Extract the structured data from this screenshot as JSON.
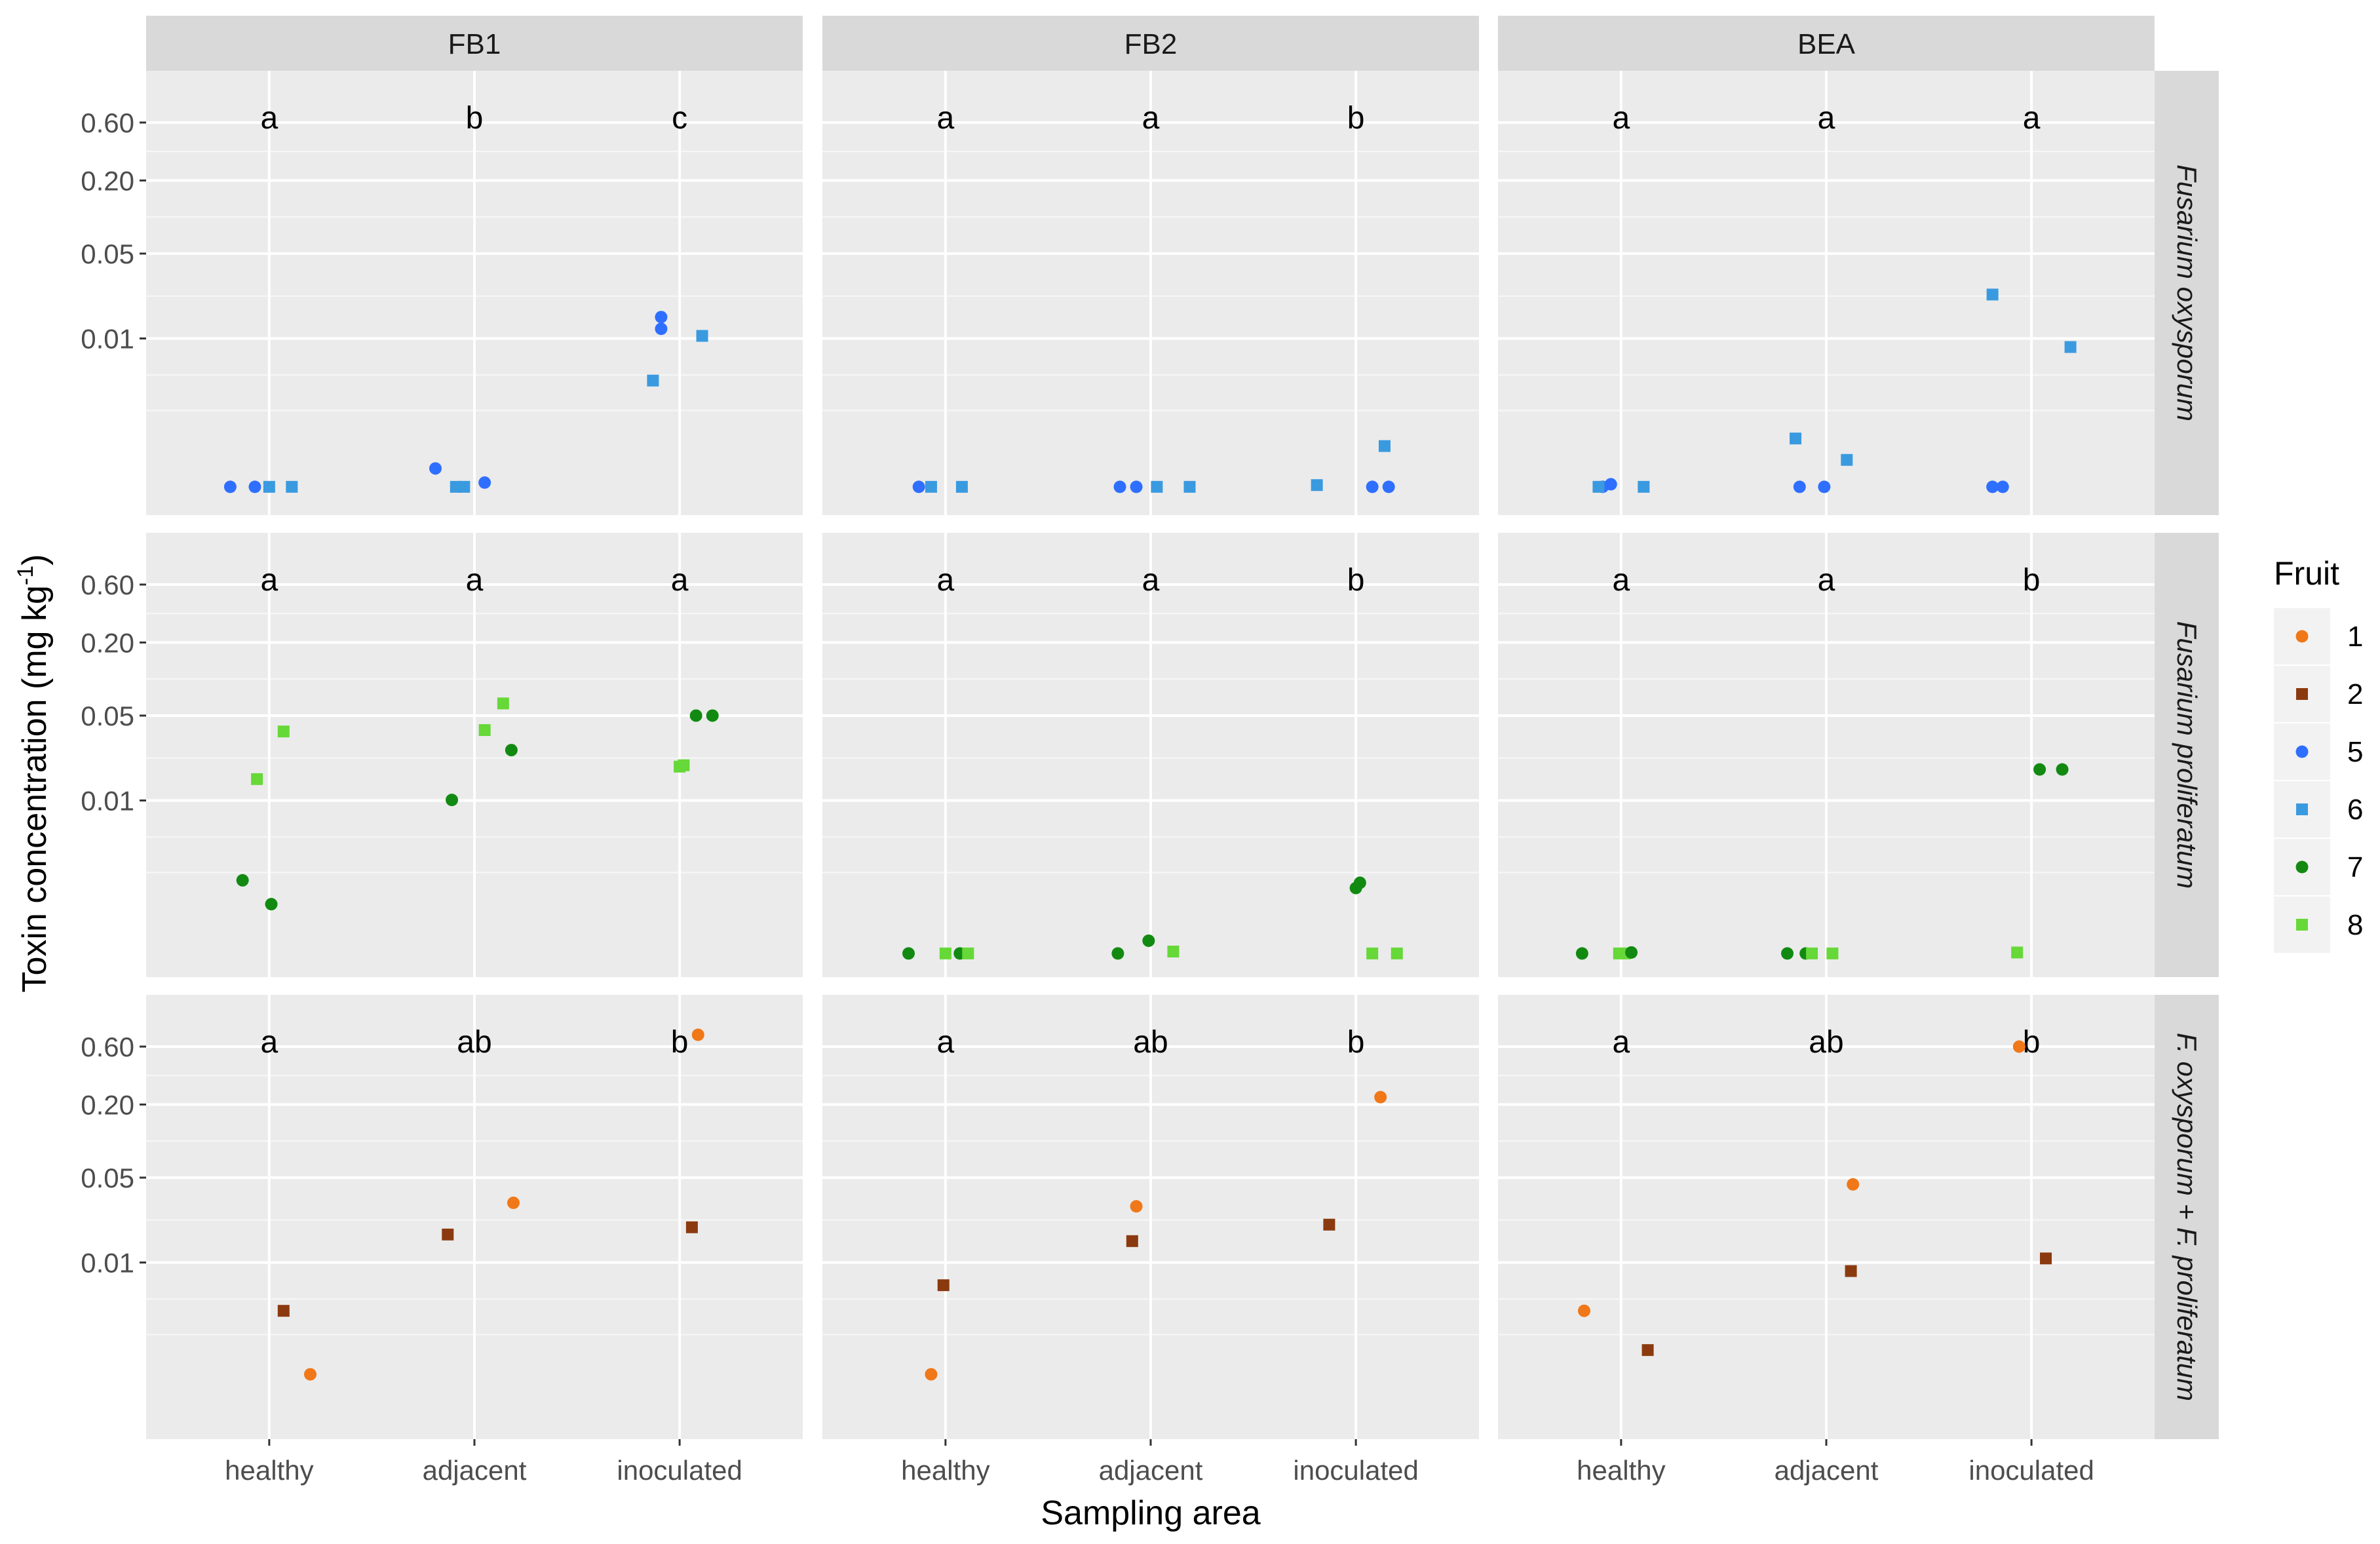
{
  "chart_data": {
    "type": "scatter",
    "layout": "faceted-grid",
    "xlabel": "Sampling area",
    "ylabel_main": "Toxin concentration (mg kg",
    "ylabel_sup": "-1",
    "ylabel_close": ")",
    "yscale": "log",
    "y_ticks": [
      {
        "value": 0.6,
        "label": "0.60"
      },
      {
        "value": 0.2,
        "label": "0.20"
      },
      {
        "value": 0.05,
        "label": "0.05"
      },
      {
        "value": 0.01,
        "label": "0.01"
      }
    ],
    "categories": [
      "healthy",
      "adjacent",
      "inoculated"
    ],
    "columns": [
      "FB1",
      "FB2",
      "BEA"
    ],
    "rows": [
      "Fusarium oxysporum",
      "Fusarium proliferatum",
      "F. oxysporum + F. proliferatum"
    ],
    "legend": {
      "title": "Fruit",
      "entries": [
        {
          "label": "1",
          "color": "#f07818",
          "shape": "circle"
        },
        {
          "label": "2",
          "color": "#8b3a0f",
          "shape": "square"
        },
        {
          "label": "5",
          "color": "#2f6fff",
          "shape": "circle"
        },
        {
          "label": "6",
          "color": "#3a9ae0",
          "shape": "square"
        },
        {
          "label": "7",
          "color": "#128a12",
          "shape": "circle"
        },
        {
          "label": "8",
          "color": "#66d838",
          "shape": "square"
        }
      ]
    },
    "letters": [
      [
        [
          "a",
          "b",
          "c"
        ],
        [
          "a",
          "a",
          "b"
        ],
        [
          "a",
          "a",
          "a"
        ]
      ],
      [
        [
          "a",
          "a",
          "a"
        ],
        [
          "a",
          "a",
          "b"
        ],
        [
          "a",
          "a",
          "b"
        ]
      ],
      [
        [
          "a",
          "ab",
          "b"
        ],
        [
          "a",
          "ab",
          "b"
        ],
        [
          "a",
          "ab",
          "b"
        ]
      ]
    ],
    "points": [
      [
        [
          {
            "fruit": "5",
            "cat": 0,
            "dx": -0.19,
            "y": 0.0006
          },
          {
            "fruit": "5",
            "cat": 0,
            "dx": -0.07,
            "y": 0.0006
          },
          {
            "fruit": "6",
            "cat": 0,
            "dx": 0,
            "y": 0.0006
          },
          {
            "fruit": "6",
            "cat": 0,
            "dx": 0.11,
            "y": 0.0006
          },
          {
            "fruit": "5",
            "cat": 1,
            "dx": -0.19,
            "y": 0.00085
          },
          {
            "fruit": "6",
            "cat": 1,
            "dx": -0.09,
            "y": 0.0006
          },
          {
            "fruit": "6",
            "cat": 1,
            "dx": -0.05,
            "y": 0.0006
          },
          {
            "fruit": "5",
            "cat": 1,
            "dx": 0.05,
            "y": 0.00065
          },
          {
            "fruit": "5",
            "cat": 2,
            "dx": -0.09,
            "y": 0.015
          },
          {
            "fruit": "5",
            "cat": 2,
            "dx": -0.09,
            "y": 0.012
          },
          {
            "fruit": "6",
            "cat": 2,
            "dx": -0.13,
            "y": 0.0045
          },
          {
            "fruit": "6",
            "cat": 2,
            "dx": 0.11,
            "y": 0.0105
          }
        ],
        [
          {
            "fruit": "5",
            "cat": 0,
            "dx": -0.13,
            "y": 0.0006
          },
          {
            "fruit": "6",
            "cat": 0,
            "dx": -0.07,
            "y": 0.0006
          },
          {
            "fruit": "6",
            "cat": 0,
            "dx": 0.08,
            "y": 0.0006
          },
          {
            "fruit": "5",
            "cat": 1,
            "dx": -0.15,
            "y": 0.0006
          },
          {
            "fruit": "5",
            "cat": 1,
            "dx": -0.07,
            "y": 0.0006
          },
          {
            "fruit": "6",
            "cat": 1,
            "dx": 0.03,
            "y": 0.0006
          },
          {
            "fruit": "6",
            "cat": 1,
            "dx": 0.19,
            "y": 0.0006
          },
          {
            "fruit": "6",
            "cat": 2,
            "dx": -0.19,
            "y": 0.00062
          },
          {
            "fruit": "5",
            "cat": 2,
            "dx": 0.08,
            "y": 0.0006
          },
          {
            "fruit": "5",
            "cat": 2,
            "dx": 0.16,
            "y": 0.0006
          },
          {
            "fruit": "6",
            "cat": 2,
            "dx": 0.14,
            "y": 0.0013
          }
        ],
        [
          {
            "fruit": "5",
            "cat": 0,
            "dx": -0.09,
            "y": 0.0006
          },
          {
            "fruit": "5",
            "cat": 0,
            "dx": -0.05,
            "y": 0.00063
          },
          {
            "fruit": "6",
            "cat": 0,
            "dx": -0.11,
            "y": 0.0006
          },
          {
            "fruit": "6",
            "cat": 0,
            "dx": 0.11,
            "y": 0.0006
          },
          {
            "fruit": "6",
            "cat": 1,
            "dx": -0.15,
            "y": 0.0015
          },
          {
            "fruit": "6",
            "cat": 1,
            "dx": 0.1,
            "y": 0.001
          },
          {
            "fruit": "5",
            "cat": 1,
            "dx": -0.13,
            "y": 0.0006
          },
          {
            "fruit": "5",
            "cat": 1,
            "dx": -0.01,
            "y": 0.0006
          },
          {
            "fruit": "6",
            "cat": 2,
            "dx": -0.19,
            "y": 0.023
          },
          {
            "fruit": "6",
            "cat": 2,
            "dx": 0.19,
            "y": 0.0085
          },
          {
            "fruit": "5",
            "cat": 2,
            "dx": -0.19,
            "y": 0.0006
          },
          {
            "fruit": "5",
            "cat": 2,
            "dx": -0.14,
            "y": 0.0006
          }
        ]
      ],
      [
        [
          {
            "fruit": "7",
            "cat": 0,
            "dx": -0.13,
            "y": 0.0022
          },
          {
            "fruit": "7",
            "cat": 0,
            "dx": 0.01,
            "y": 0.0014
          },
          {
            "fruit": "8",
            "cat": 0,
            "dx": -0.06,
            "y": 0.015
          },
          {
            "fruit": "8",
            "cat": 0,
            "dx": 0.07,
            "y": 0.037
          },
          {
            "fruit": "7",
            "cat": 1,
            "dx": -0.11,
            "y": 0.0101
          },
          {
            "fruit": "7",
            "cat": 1,
            "dx": 0.18,
            "y": 0.026
          },
          {
            "fruit": "8",
            "cat": 1,
            "dx": 0.05,
            "y": 0.038
          },
          {
            "fruit": "8",
            "cat": 1,
            "dx": 0.14,
            "y": 0.063
          },
          {
            "fruit": "7",
            "cat": 2,
            "dx": 0.08,
            "y": 0.05
          },
          {
            "fruit": "7",
            "cat": 2,
            "dx": 0.16,
            "y": 0.05
          },
          {
            "fruit": "8",
            "cat": 2,
            "dx": 0,
            "y": 0.019
          },
          {
            "fruit": "8",
            "cat": 2,
            "dx": 0.02,
            "y": 0.0195
          }
        ],
        [
          {
            "fruit": "7",
            "cat": 0,
            "dx": -0.18,
            "y": 0.00055
          },
          {
            "fruit": "8",
            "cat": 0,
            "dx": 0,
            "y": 0.00055
          },
          {
            "fruit": "7",
            "cat": 0,
            "dx": 0.07,
            "y": 0.00055
          },
          {
            "fruit": "8",
            "cat": 0,
            "dx": 0.11,
            "y": 0.00055
          },
          {
            "fruit": "7",
            "cat": 1,
            "dx": -0.16,
            "y": 0.00055
          },
          {
            "fruit": "7",
            "cat": 1,
            "dx": -0.01,
            "y": 0.0007
          },
          {
            "fruit": "8",
            "cat": 1,
            "dx": 0.11,
            "y": 0.00057
          },
          {
            "fruit": "7",
            "cat": 2,
            "dx": 0,
            "y": 0.0019
          },
          {
            "fruit": "7",
            "cat": 2,
            "dx": 0.02,
            "y": 0.0021
          },
          {
            "fruit": "8",
            "cat": 2,
            "dx": 0.08,
            "y": 0.00055
          },
          {
            "fruit": "8",
            "cat": 2,
            "dx": 0.2,
            "y": 0.00055
          }
        ],
        [
          {
            "fruit": "7",
            "cat": 0,
            "dx": -0.19,
            "y": 0.00055
          },
          {
            "fruit": "8",
            "cat": 0,
            "dx": -0.01,
            "y": 0.00055
          },
          {
            "fruit": "8",
            "cat": 0,
            "dx": 0.02,
            "y": 0.00055
          },
          {
            "fruit": "7",
            "cat": 0,
            "dx": 0.05,
            "y": 0.00056
          },
          {
            "fruit": "7",
            "cat": 1,
            "dx": -0.19,
            "y": 0.00055
          },
          {
            "fruit": "7",
            "cat": 1,
            "dx": -0.1,
            "y": 0.00055
          },
          {
            "fruit": "8",
            "cat": 1,
            "dx": -0.07,
            "y": 0.00055
          },
          {
            "fruit": "8",
            "cat": 1,
            "dx": 0.03,
            "y": 0.00055
          },
          {
            "fruit": "8",
            "cat": 2,
            "dx": -0.07,
            "y": 0.00056
          },
          {
            "fruit": "7",
            "cat": 2,
            "dx": 0.04,
            "y": 0.018
          },
          {
            "fruit": "7",
            "cat": 2,
            "dx": 0.15,
            "y": 0.018
          }
        ]
      ],
      [
        [
          {
            "fruit": "2",
            "cat": 0,
            "dx": 0.07,
            "y": 0.004
          },
          {
            "fruit": "1",
            "cat": 0,
            "dx": 0.2,
            "y": 0.0012
          },
          {
            "fruit": "2",
            "cat": 1,
            "dx": -0.13,
            "y": 0.017
          },
          {
            "fruit": "1",
            "cat": 1,
            "dx": 0.19,
            "y": 0.031
          },
          {
            "fruit": "2",
            "cat": 2,
            "dx": 0.06,
            "y": 0.0195
          },
          {
            "fruit": "1",
            "cat": 2,
            "dx": 0.09,
            "y": 0.75
          }
        ],
        [
          {
            "fruit": "2",
            "cat": 0,
            "dx": -0.01,
            "y": 0.0065
          },
          {
            "fruit": "1",
            "cat": 0,
            "dx": -0.07,
            "y": 0.0012
          },
          {
            "fruit": "2",
            "cat": 1,
            "dx": -0.09,
            "y": 0.015
          },
          {
            "fruit": "1",
            "cat": 1,
            "dx": -0.07,
            "y": 0.029
          },
          {
            "fruit": "2",
            "cat": 2,
            "dx": -0.13,
            "y": 0.0205
          },
          {
            "fruit": "1",
            "cat": 2,
            "dx": 0.12,
            "y": 0.23
          }
        ],
        [
          {
            "fruit": "1",
            "cat": 0,
            "dx": -0.18,
            "y": 0.004
          },
          {
            "fruit": "2",
            "cat": 0,
            "dx": 0.13,
            "y": 0.0019
          },
          {
            "fruit": "1",
            "cat": 1,
            "dx": 0.13,
            "y": 0.044
          },
          {
            "fruit": "2",
            "cat": 1,
            "dx": 0.12,
            "y": 0.0085
          },
          {
            "fruit": "1",
            "cat": 2,
            "dx": -0.06,
            "y": 0.6
          },
          {
            "fruit": "2",
            "cat": 2,
            "dx": 0.07,
            "y": 0.0108
          }
        ]
      ]
    ]
  }
}
